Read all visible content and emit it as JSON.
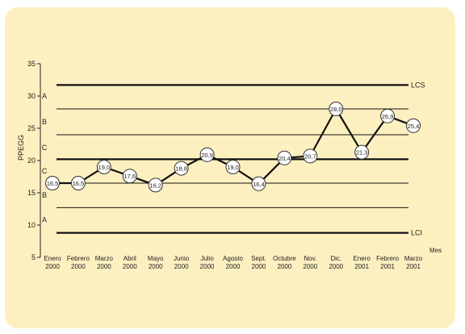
{
  "chart_data": {
    "type": "line",
    "ylabel": "PPEGG",
    "xlabel": "Mes",
    "ylim": [
      5,
      35
    ],
    "yticks": [
      5,
      10,
      15,
      20,
      25,
      30,
      35
    ],
    "grid": false,
    "categories": [
      [
        "Enero",
        "2000"
      ],
      [
        "Febrero",
        "2000"
      ],
      [
        "Marzo",
        "2000"
      ],
      [
        "Abril",
        "2000"
      ],
      [
        "Mayo",
        "2000"
      ],
      [
        "Junio",
        "2000"
      ],
      [
        "Julio",
        "2000"
      ],
      [
        "Agosto",
        "2000"
      ],
      [
        "Sept.",
        "2000"
      ],
      [
        "Octubre",
        "2000"
      ],
      [
        "Nov.",
        "2000"
      ],
      [
        "Dic.",
        "2000"
      ],
      [
        "Enero",
        "2001"
      ],
      [
        "Febrero",
        "2001"
      ],
      [
        "Marzo",
        "2001"
      ]
    ],
    "values": [
      16.5,
      16.5,
      19.0,
      17.6,
      16.2,
      18.8,
      20.9,
      19.0,
      16.4,
      20.4,
      20.7,
      28.0,
      21.3,
      26.9,
      25.4
    ],
    "value_labels": [
      "16,5",
      "16,5",
      "19,0",
      "17,6",
      "16,2",
      "18,8",
      "20,9",
      "19,0",
      "16,4",
      "20,4",
      "20,7",
      "28,0",
      "21,3",
      "26,9",
      "25,4"
    ],
    "control_lines": [
      {
        "label": "LCS",
        "value": 31.7,
        "style": "thick"
      },
      {
        "label": "",
        "value": 28.0,
        "style": "thin"
      },
      {
        "label": "",
        "value": 24.0,
        "style": "thin"
      },
      {
        "label": "",
        "value": 20.2,
        "style": "thick"
      },
      {
        "label": "",
        "value": 16.5,
        "style": "thin"
      },
      {
        "label": "",
        "value": 12.7,
        "style": "thin"
      },
      {
        "label": "LCI",
        "value": 8.8,
        "style": "thick"
      }
    ],
    "zones": [
      {
        "label": "A",
        "value": 30.0
      },
      {
        "label": "B",
        "value": 26.0
      },
      {
        "label": "C",
        "value": 22.0
      },
      {
        "label": "C",
        "value": 18.4
      },
      {
        "label": "B",
        "value": 14.6
      },
      {
        "label": "A",
        "value": 10.8
      }
    ],
    "colors": {
      "background": "#fdf0c0",
      "line": "#111111",
      "marker_fill": "#ffffff"
    }
  }
}
